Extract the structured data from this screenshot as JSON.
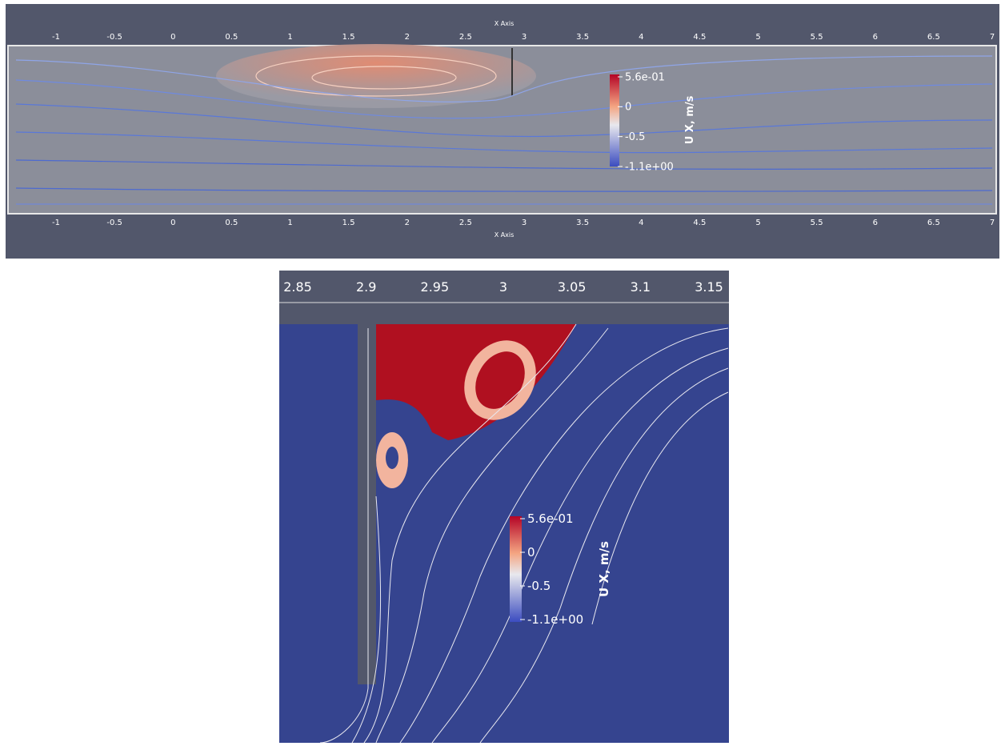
{
  "top_panel": {
    "axis_title_top": "X Axis",
    "axis_title_bottom": "X Axis",
    "top_ticks": [
      "-1",
      "-0.5",
      "0",
      "0.5",
      "1",
      "1.5",
      "2",
      "2.5",
      "3",
      "3.5",
      "4",
      "4.5",
      "5",
      "5.5",
      "6",
      "6.5",
      "7"
    ],
    "bottom_ticks": [
      "-1",
      "-0.5",
      "0",
      "0.5",
      "1",
      "1.5",
      "2",
      "2.5",
      "3",
      "3.5",
      "4",
      "4.5",
      "5",
      "5.5",
      "6",
      "6.5",
      "7"
    ],
    "colorbar": {
      "title": "U X, m/s",
      "labels": [
        "5.6e-01",
        "0",
        "-0.5",
        "-1.1e+00"
      ]
    }
  },
  "bottom_panel": {
    "top_ticks": [
      "2.85",
      "2.9",
      "2.95",
      "3",
      "3.05",
      "3.1",
      "3.15"
    ],
    "colorbar": {
      "title": "U X, m/s",
      "labels": [
        "5.6e-01",
        "0",
        "-0.5",
        "-1.1e+00"
      ]
    }
  }
}
